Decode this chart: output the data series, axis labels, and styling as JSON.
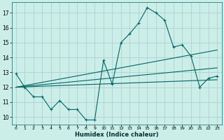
{
  "xlabel": "Humidex (Indice chaleur)",
  "background_color": "#cceee8",
  "grid_color": "#aacccc",
  "line_color": "#006666",
  "xlim": [
    -0.5,
    23.5
  ],
  "ylim": [
    9.5,
    17.7
  ],
  "xticks": [
    0,
    1,
    2,
    3,
    4,
    5,
    6,
    7,
    8,
    9,
    10,
    11,
    12,
    13,
    14,
    15,
    16,
    17,
    18,
    19,
    20,
    21,
    22,
    23
  ],
  "yticks": [
    10,
    11,
    12,
    13,
    14,
    15,
    16,
    17
  ],
  "main_line": {
    "x": [
      0,
      1,
      2,
      3,
      4,
      5,
      6,
      7,
      8,
      9,
      10,
      11,
      12,
      13,
      14,
      15,
      16,
      17,
      18,
      19,
      20,
      21,
      22,
      23
    ],
    "y": [
      12.9,
      12.0,
      11.35,
      11.35,
      10.5,
      11.1,
      10.5,
      10.5,
      9.8,
      9.8,
      13.8,
      12.2,
      15.0,
      15.6,
      16.3,
      17.35,
      17.0,
      16.5,
      14.7,
      14.85,
      14.1,
      12.0,
      12.6,
      12.75
    ]
  },
  "trend_lines": [
    {
      "x": [
        0,
        23
      ],
      "y": [
        12.0,
        12.5
      ]
    },
    {
      "x": [
        0,
        23
      ],
      "y": [
        12.0,
        13.3
      ]
    },
    {
      "x": [
        0,
        23
      ],
      "y": [
        12.0,
        14.5
      ]
    }
  ]
}
